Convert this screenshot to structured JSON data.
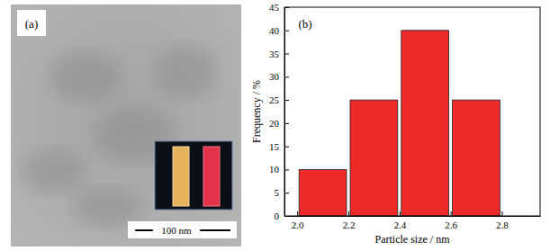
{
  "image_panel": {
    "label": "(a)",
    "scale_bar": "100 nm"
  },
  "chart_data": {
    "type": "histogram",
    "title": "(b)",
    "x_label": "Particle size / nm",
    "y_label": "Frequency / %",
    "bins": [
      2.0,
      2.2,
      2.4,
      2.6,
      2.8
    ],
    "values": [
      10,
      25,
      40,
      25
    ],
    "color": "#ee2b2b",
    "xlim": [
      1.95,
      2.95
    ],
    "xticks": [
      {
        "value": 2.0,
        "label": "2.0"
      },
      {
        "value": 2.2,
        "label": "2.2"
      },
      {
        "value": 2.4,
        "label": "2.4"
      },
      {
        "value": 2.6,
        "label": "2.6"
      },
      {
        "value": 2.8,
        "label": "2.8"
      }
    ],
    "ylim": [
      0,
      45
    ],
    "yticks": [
      0,
      5,
      10,
      15,
      20,
      25,
      30,
      35,
      40,
      45
    ],
    "grid": false
  }
}
